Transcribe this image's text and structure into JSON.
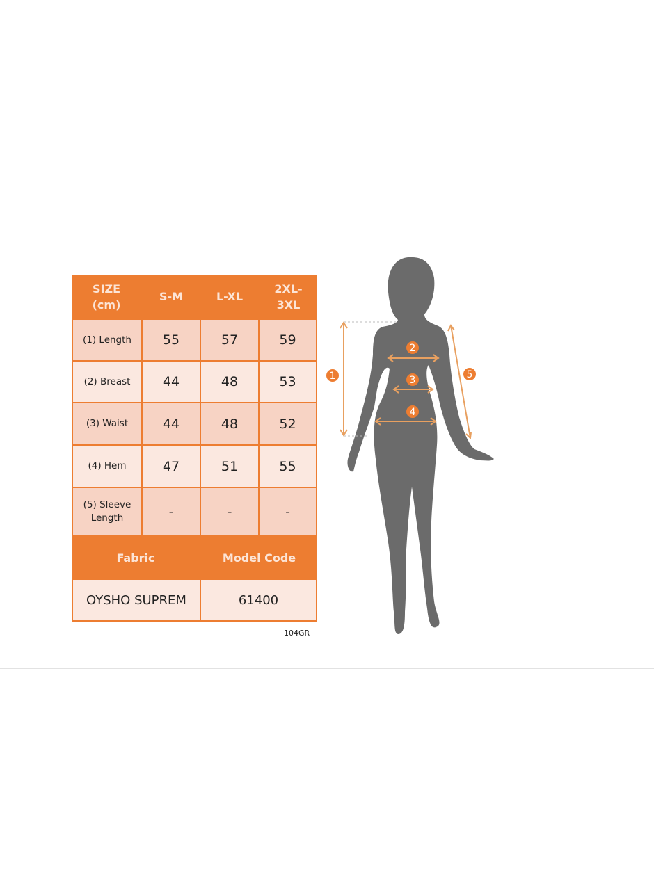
{
  "table": {
    "header": [
      "SIZE (cm)",
      "S-M",
      "L-XL",
      "2XL- 3XL"
    ],
    "header_lines": [
      [
        "SIZE",
        "(cm)"
      ],
      [
        "S-M"
      ],
      [
        "L-XL"
      ],
      [
        "2XL-",
        "3XL"
      ]
    ],
    "rows": [
      {
        "label": "(1) Length",
        "values": [
          "55",
          "57",
          "59"
        ]
      },
      {
        "label": "(2) Breast",
        "values": [
          "44",
          "48",
          "53"
        ]
      },
      {
        "label": "(3) Waist",
        "values": [
          "44",
          "48",
          "52"
        ]
      },
      {
        "label": "(4) Hem",
        "values": [
          "47",
          "51",
          "55"
        ]
      },
      {
        "label_lines": [
          "(5) Sleeve",
          "Length"
        ],
        "values": [
          "-",
          "-",
          "-"
        ]
      }
    ],
    "fabric_label": "Fabric",
    "model_code_label": "Model Code",
    "fabric_value": "OYSHO SUPREM",
    "model_code_value": "61400"
  },
  "product_code": "104GR",
  "figure": {
    "markers": [
      "1",
      "2",
      "3",
      "4",
      "5"
    ],
    "colors": {
      "accent": "#ED7D31",
      "silhouette": "#6B6B6B",
      "arrow": "#E8A060"
    }
  }
}
